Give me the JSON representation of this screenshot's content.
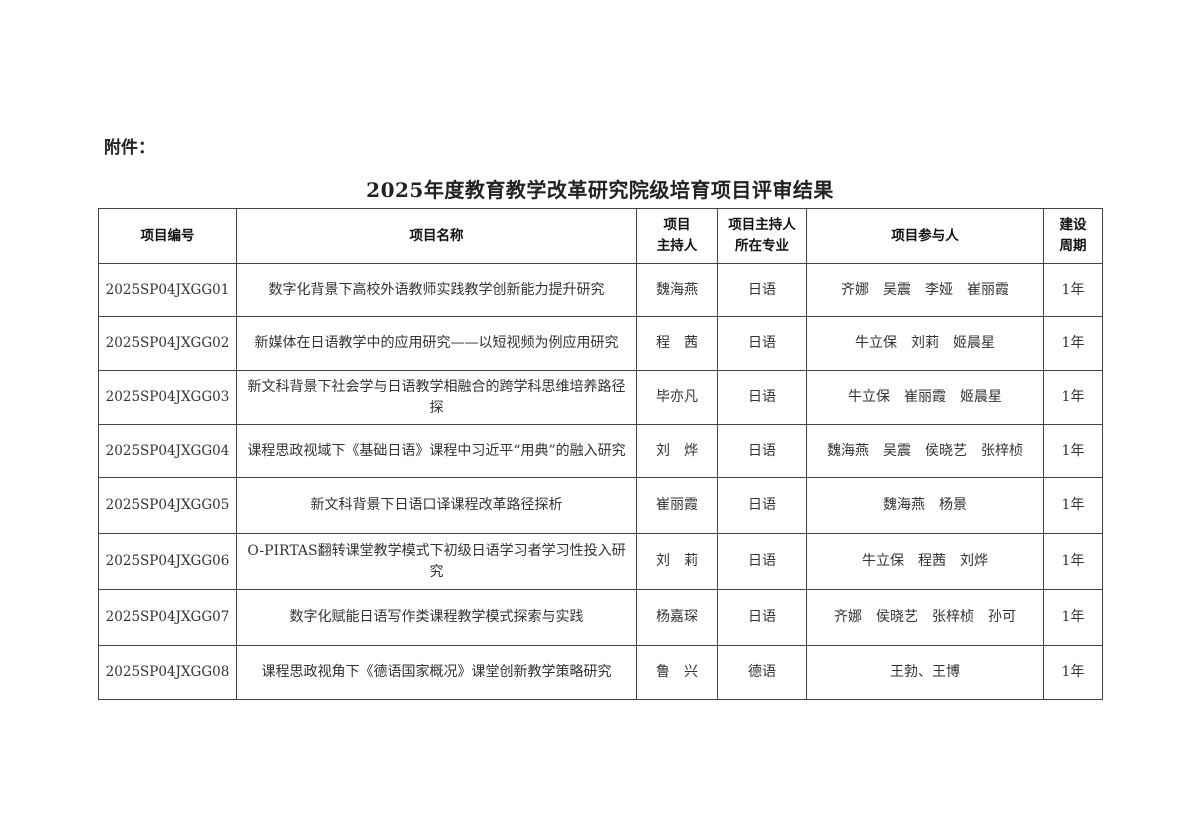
{
  "attachment_label": "附件：",
  "title": "2025年度教育教学改革研究院级培育项目评审结果",
  "table": {
    "headers": [
      "项目编号",
      "项目名称",
      "项目\n主持人",
      "项目主持人\n所在专业",
      "项目参与人",
      "建设\n周期"
    ],
    "rows": [
      {
        "code": "2025SP04JXGG01",
        "name": "数字化背景下高校外语教师实践教学创新能力提升研究",
        "leader": "魏海燕",
        "major": "日语",
        "members": "齐娜　吴震　李娅　崔丽霞",
        "period": "1年"
      },
      {
        "code": "2025SP04JXGG02",
        "name": "新媒体在日语教学中的应用研究——以短视频为例应用研究",
        "leader": "程　茜",
        "major": "日语",
        "members": "牛立保　刘莉　姬晨星",
        "period": "1年"
      },
      {
        "code": "2025SP04JXGG03",
        "name": "新文科背景下社会学与日语教学相融合的跨学科思维培养路径探",
        "leader": "毕亦凡",
        "major": "日语",
        "members": "牛立保　崔丽霞　姬晨星",
        "period": "1年"
      },
      {
        "code": "2025SP04JXGG04",
        "name": "课程思政视域下《基础日语》课程中习近平“用典”的融入研究",
        "leader": "刘　烨",
        "major": "日语",
        "members": "魏海燕　吴震　侯晓艺　张梓桢",
        "period": "1年"
      },
      {
        "code": "2025SP04JXGG05",
        "name": "新文科背景下日语口译课程改革路径探析",
        "leader": "崔丽霞",
        "major": "日语",
        "members": "魏海燕　杨景",
        "period": "1年"
      },
      {
        "code": "2025SP04JXGG06",
        "name": "O-PIRTAS翻转课堂教学模式下初级日语学习者学习性投入研究",
        "leader": "刘　莉",
        "major": "日语",
        "members": "牛立保　程茜　刘烨",
        "period": "1年"
      },
      {
        "code": "2025SP04JXGG07",
        "name": "数字化赋能日语写作类课程教学模式探索与实践",
        "leader": "杨嘉琛",
        "major": "日语",
        "members": "齐娜　侯晓艺　张梓桢　孙可",
        "period": "1年"
      },
      {
        "code": "2025SP04JXGG08",
        "name": "课程思政视角下《德语国家概况》课堂创新教学策略研究",
        "leader": "鲁　兴",
        "major": "德语",
        "members": "王勃、王博",
        "period": "1年"
      }
    ]
  }
}
